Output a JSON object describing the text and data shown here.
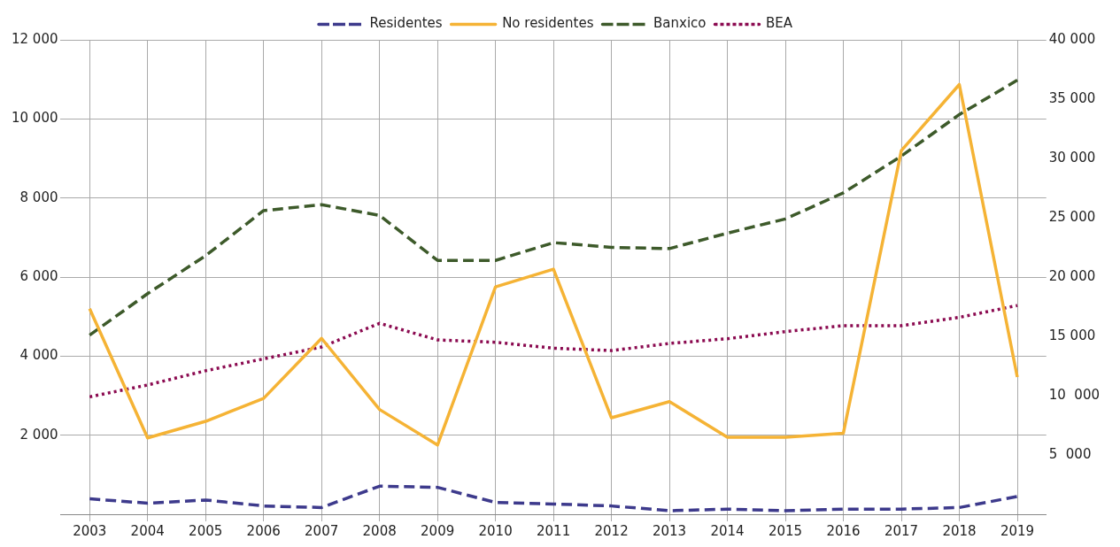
{
  "chart_data": {
    "type": "line",
    "categories": [
      "2003",
      "2004",
      "2005",
      "2006",
      "2007",
      "2008",
      "2009",
      "2010",
      "2011",
      "2012",
      "2013",
      "2014",
      "2015",
      "2016",
      "2017",
      "2018",
      "2019"
    ],
    "series": [
      {
        "name": "Residentes",
        "color": "#3d3a8c",
        "line_style": "dashed",
        "values": [
          390,
          280,
          360,
          210,
          170,
          710,
          680,
          300,
          260,
          210,
          90,
          130,
          90,
          130,
          130,
          170,
          450
        ]
      },
      {
        "name": "No residentes",
        "color": "#f5b335",
        "line_style": "solid",
        "values": [
          5200,
          1930,
          2350,
          2930,
          4450,
          2650,
          1750,
          5750,
          6200,
          2440,
          2850,
          1950,
          1950,
          2050,
          9200,
          10870,
          3470
        ]
      },
      {
        "name": "Banxico",
        "color": "#3d5a2a",
        "line_style": "dashed",
        "axis": "y2",
        "values": [
          15100,
          18600,
          21800,
          25600,
          26100,
          25200,
          21400,
          21400,
          22900,
          22500,
          22400,
          23700,
          24900,
          27100,
          30200,
          33700,
          36600
        ]
      },
      {
        "name": "BEA",
        "color": "#8b0a50",
        "line_style": "dotted",
        "axis": "y2",
        "values": [
          9900,
          10900,
          12100,
          13100,
          14100,
          16100,
          14700,
          14500,
          14000,
          13800,
          14400,
          14800,
          15400,
          15900,
          15900,
          16600,
          17600
        ]
      }
    ],
    "ylim": [
      0,
      12000
    ],
    "yticks": [
      {
        "value": 2000,
        "label": "2 000"
      },
      {
        "value": 4000,
        "label": "4 000"
      },
      {
        "value": 6000,
        "label": "6 000"
      },
      {
        "value": 8000,
        "label": "8 000"
      },
      {
        "value": 10000,
        "label": "10 000"
      },
      {
        "value": 12000,
        "label": "12 000"
      }
    ],
    "y2lim": [
      0,
      40000
    ],
    "y2ticks": [
      {
        "value": 5000,
        "label": "5  000"
      },
      {
        "value": 10000,
        "label": "10  000"
      },
      {
        "value": 15000,
        "label": "15 000"
      },
      {
        "value": 20000,
        "label": "20 000"
      },
      {
        "value": 25000,
        "label": "25 000"
      },
      {
        "value": 30000,
        "label": "30 000"
      },
      {
        "value": 35000,
        "label": "35 000"
      },
      {
        "value": 40000,
        "label": "40 000"
      }
    ],
    "grid": true,
    "legend": "top",
    "marker": "none"
  }
}
